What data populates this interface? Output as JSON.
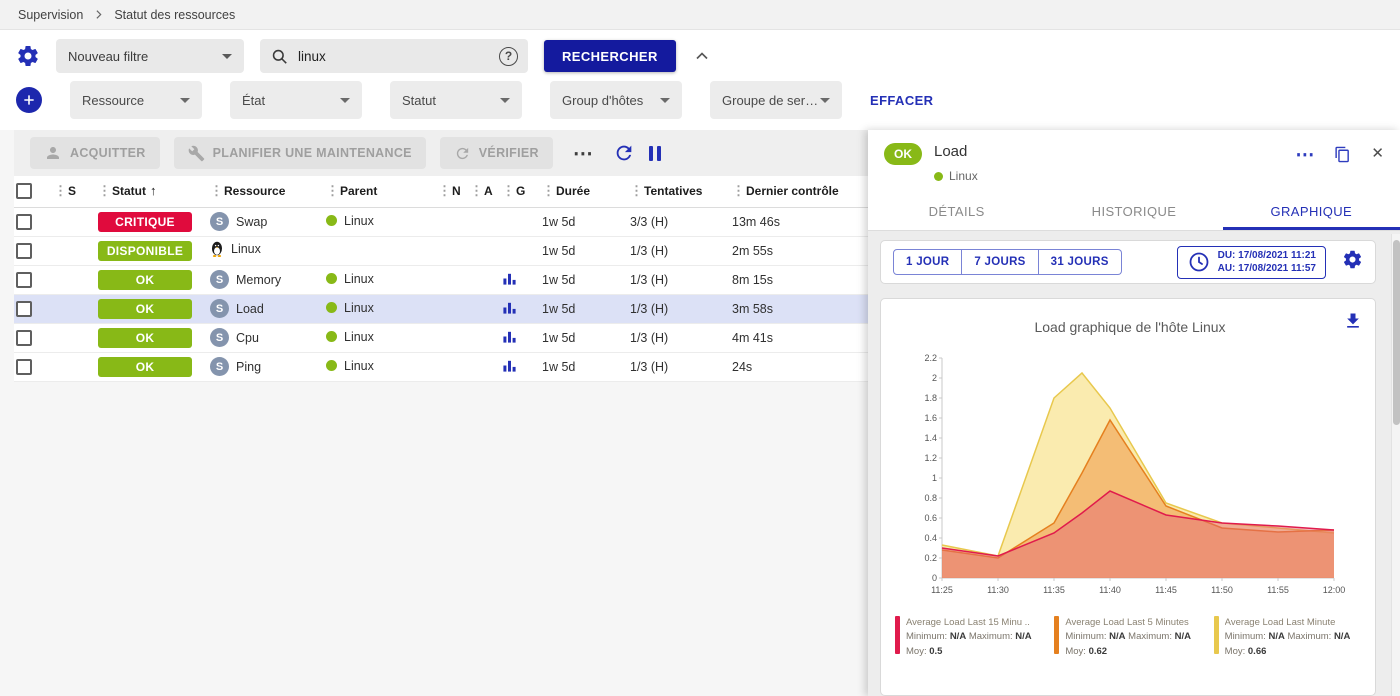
{
  "breadcrumb": {
    "items": [
      "Supervision",
      "Statut des ressources"
    ]
  },
  "icons": {
    "help": "?",
    "more": "⋯",
    "close": "✕",
    "kebab": "⋮",
    "sort_asc": "↑"
  },
  "colors": {
    "primary": "#2430b6",
    "critical": "#e00b3d",
    "ok": "#88b917"
  },
  "filters": {
    "saved_filter": "Nouveau filtre",
    "search_value": "linux",
    "search_button": "RECHERCHER",
    "criteria": [
      "Ressource",
      "État",
      "Statut",
      "Group d'hôtes",
      "Groupe de ser…"
    ],
    "clear_label": "EFFACER"
  },
  "toolbar": {
    "acknowledge": "ACQUITTER",
    "maintenance": "PLANIFIER UNE MAINTENANCE",
    "check": "VÉRIFIER"
  },
  "table": {
    "sort_column": "Statut",
    "service_glyph": "S",
    "columns": [
      "S",
      "Statut",
      "Ressource",
      "Parent",
      "N",
      "A",
      "G",
      "Durée",
      "Tentatives",
      "Dernier contrôle"
    ],
    "rows": [
      {
        "status": "CRITIQUE",
        "status_color": "#e00b3d",
        "type": "service",
        "resource": "Swap",
        "parent": "Linux",
        "graph": false,
        "duration": "1w 5d",
        "tries": "3/3 (H)",
        "last_check": "13m 46s",
        "selected": false
      },
      {
        "status": "DISPONIBLE",
        "status_color": "#88b917",
        "type": "host",
        "resource": "Linux",
        "parent": "",
        "graph": false,
        "duration": "1w 5d",
        "tries": "1/3 (H)",
        "last_check": "2m 55s",
        "selected": false
      },
      {
        "status": "OK",
        "status_color": "#88b917",
        "type": "service",
        "resource": "Memory",
        "parent": "Linux",
        "graph": true,
        "duration": "1w 5d",
        "tries": "1/3 (H)",
        "last_check": "8m 15s",
        "selected": false
      },
      {
        "status": "OK",
        "status_color": "#88b917",
        "type": "service",
        "resource": "Load",
        "parent": "Linux",
        "graph": true,
        "duration": "1w 5d",
        "tries": "1/3 (H)",
        "last_check": "3m 58s",
        "selected": true
      },
      {
        "status": "OK",
        "status_color": "#88b917",
        "type": "service",
        "resource": "Cpu",
        "parent": "Linux",
        "graph": true,
        "duration": "1w 5d",
        "tries": "1/3 (H)",
        "last_check": "4m 41s",
        "selected": false
      },
      {
        "status": "OK",
        "status_color": "#88b917",
        "type": "service",
        "resource": "Ping",
        "parent": "Linux",
        "graph": true,
        "duration": "1w 5d",
        "tries": "1/3 (H)",
        "last_check": "24s",
        "selected": false
      }
    ]
  },
  "panel": {
    "status": "OK",
    "title": "Load",
    "parent": "Linux",
    "tabs": [
      "DÉTAILS",
      "HISTORIQUE",
      "GRAPHIQUE"
    ],
    "active_tab": "GRAPHIQUE",
    "ranges": [
      "1 JOUR",
      "7 JOURS",
      "31 JOURS"
    ],
    "from_label": "DU: 17/08/2021 11:21",
    "to_label": "AU: 17/08/2021 11:57"
  },
  "chart_data": {
    "type": "area",
    "title": "Load graphique de l'hôte Linux",
    "xlabel": "",
    "ylabel": "",
    "ylim": [
      0,
      2.2
    ],
    "y_tick_step": 0.2,
    "grid": false,
    "legend_position": "bottom",
    "x_ticks": [
      "11:25",
      "11:30",
      "11:35",
      "11:40",
      "11:45",
      "11:50",
      "11:55",
      "12:00"
    ],
    "x_range": [
      0,
      35
    ],
    "x_minutes": [
      0,
      5,
      10,
      12.5,
      15,
      20,
      25,
      30,
      35
    ],
    "min_label": "Minimum:",
    "max_label": "Maximum:",
    "avg_label": "Moy:",
    "series": [
      {
        "name": "Average Load Last 15 Minu ..",
        "color": "#e01b4c",
        "fill": "rgba(228,95,115,0.45)",
        "min": "N/A",
        "max": "N/A",
        "avg": "0.5",
        "values": [
          0.3,
          0.22,
          0.45,
          0.65,
          0.87,
          0.63,
          0.55,
          0.52,
          0.48
        ]
      },
      {
        "name": "Average Load Last 5 Minutes",
        "color": "#e5801f",
        "fill": "rgba(238,152,70,0.55)",
        "min": "N/A",
        "max": "N/A",
        "avg": "0.62",
        "values": [
          0.28,
          0.2,
          0.55,
          1.05,
          1.58,
          0.72,
          0.5,
          0.46,
          0.48
        ]
      },
      {
        "name": "Average Load Last Minute",
        "color": "#e8c84d",
        "fill": "rgba(246,218,110,0.55)",
        "min": "N/A",
        "max": "N/A",
        "avg": "0.66",
        "values": [
          0.33,
          0.22,
          1.8,
          2.05,
          1.7,
          0.75,
          0.55,
          0.5,
          0.45
        ]
      }
    ]
  }
}
